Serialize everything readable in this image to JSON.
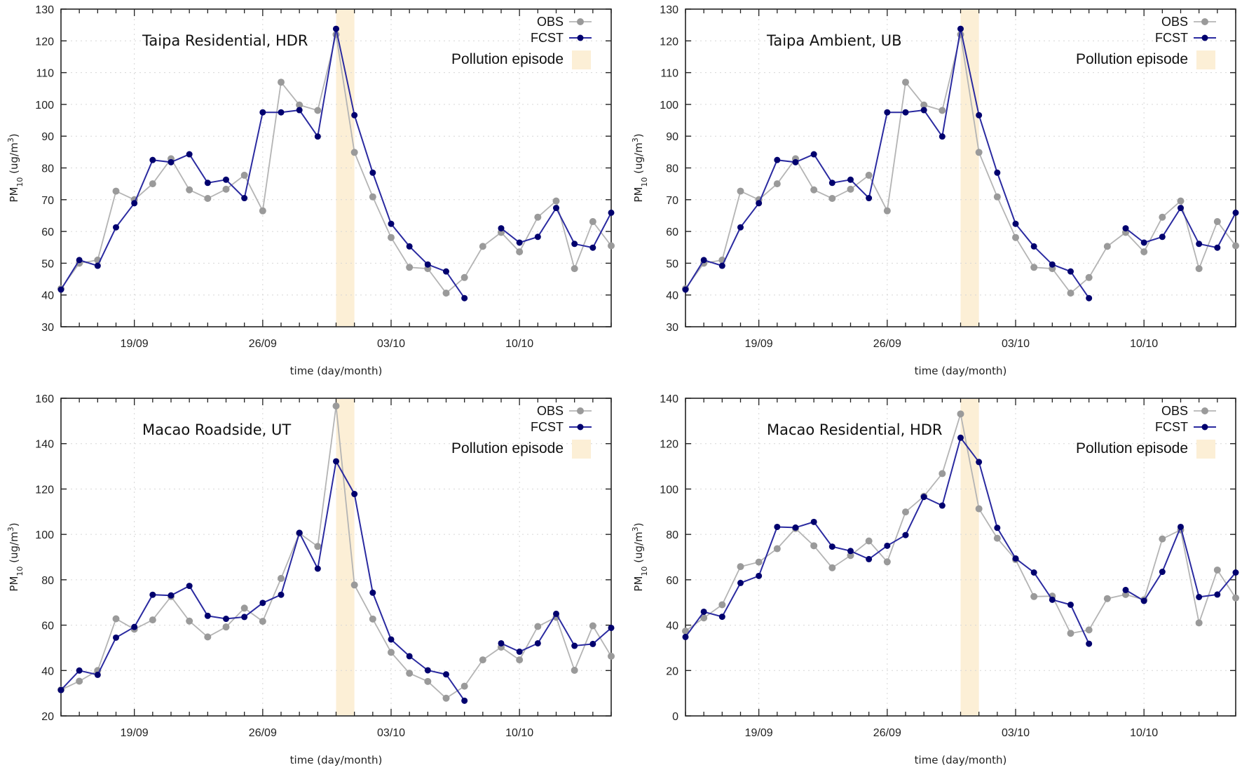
{
  "colors": {
    "obs_line": "#b4b4b4",
    "obs_marker": "#9a9a9a",
    "fcst_line": "#2a2aa0",
    "fcst_marker": "#00006e",
    "episode": "#fcefd6",
    "grid": "#d6d6d6",
    "axis": "#222222"
  },
  "legend": {
    "obs": "OBS",
    "fcst": "FCST",
    "episode": "Pollution episode"
  },
  "chart_data": [
    {
      "type": "line",
      "title": "Taipa Residential, HDR",
      "xlabel": "time (day/month)",
      "ylabel_parts": [
        "PM",
        "10",
        " (ug/m",
        "3",
        ")"
      ],
      "ylim": [
        30,
        130
      ],
      "ystep": 10,
      "x": [
        "15/09",
        "16/09",
        "17/09",
        "18/09",
        "19/09",
        "20/09",
        "21/09",
        "22/09",
        "23/09",
        "24/09",
        "25/09",
        "26/09",
        "27/09",
        "28/09",
        "29/09",
        "30/09",
        "01/10",
        "02/10",
        "03/10",
        "04/10",
        "05/10",
        "06/10",
        "07/10",
        "08/10",
        "09/10",
        "10/10",
        "11/10",
        "12/10",
        "13/10",
        "14/10",
        "15/10"
      ],
      "xticks": [
        "19/09",
        "26/09",
        "03/10",
        "10/10"
      ],
      "episode": [
        "30/09",
        "01/10"
      ],
      "grid": true,
      "legend_position": "top-right",
      "series": [
        {
          "name": "OBS",
          "values": [
            42,
            50,
            51,
            72.7,
            70,
            75,
            82.9,
            73.1,
            70.4,
            73.3,
            77.7,
            66.5,
            107,
            99.8,
            98.1,
            122,
            84.9,
            70.9,
            58.1,
            48.7,
            48.3,
            40.6,
            45.5,
            55.3,
            59.7,
            53.6,
            64.5,
            69.6,
            48.3,
            63.1,
            55.5
          ]
        },
        {
          "name": "FCST",
          "values": [
            41.7,
            51,
            49.2,
            61.3,
            68.9,
            82.5,
            81.8,
            84.3,
            75.3,
            76.3,
            70.5,
            97.5,
            97.5,
            98.2,
            89.9,
            123.8,
            96.6,
            78.5,
            62.4,
            55.3,
            49.6,
            47.4,
            39,
            null,
            61,
            56.5,
            58.3,
            67.4,
            56.1,
            54.9,
            65.9
          ]
        }
      ]
    },
    {
      "type": "line",
      "title": "Taipa Ambient, UB",
      "xlabel": "time (day/month)",
      "ylabel_parts": [
        "PM",
        "10",
        " (ug/m",
        "3",
        ")"
      ],
      "ylim": [
        30,
        130
      ],
      "ystep": 10,
      "x": [
        "15/09",
        "16/09",
        "17/09",
        "18/09",
        "19/09",
        "20/09",
        "21/09",
        "22/09",
        "23/09",
        "24/09",
        "25/09",
        "26/09",
        "27/09",
        "28/09",
        "29/09",
        "30/09",
        "01/10",
        "02/10",
        "03/10",
        "04/10",
        "05/10",
        "06/10",
        "07/10",
        "08/10",
        "09/10",
        "10/10",
        "11/10",
        "12/10",
        "13/10",
        "14/10",
        "15/10"
      ],
      "xticks": [
        "19/09",
        "26/09",
        "03/10",
        "10/10"
      ],
      "episode": [
        "30/09",
        "01/10"
      ],
      "grid": true,
      "legend_position": "top-right",
      "series": [
        {
          "name": "OBS",
          "values": [
            42,
            50,
            51,
            72.7,
            70,
            75,
            82.9,
            73.1,
            70.4,
            73.3,
            77.7,
            66.5,
            107,
            99.8,
            98.1,
            122,
            84.9,
            70.9,
            58.1,
            48.7,
            48.3,
            40.6,
            45.5,
            55.3,
            59.7,
            53.6,
            64.5,
            69.6,
            48.3,
            63.1,
            55.5
          ]
        },
        {
          "name": "FCST",
          "values": [
            41.7,
            51,
            49.2,
            61.3,
            68.9,
            82.5,
            81.8,
            84.3,
            75.3,
            76.3,
            70.5,
            97.5,
            97.5,
            98.2,
            89.9,
            123.8,
            96.6,
            78.5,
            62.4,
            55.3,
            49.6,
            47.4,
            39,
            null,
            61,
            56.5,
            58.3,
            67.4,
            56.1,
            54.9,
            65.9
          ]
        }
      ]
    },
    {
      "type": "line",
      "title": "Macao Roadside, UT",
      "xlabel": "time (day/month)",
      "ylabel_parts": [
        "PM",
        "10",
        " (ug/m",
        "3",
        ")"
      ],
      "ylim": [
        20,
        160
      ],
      "ystep": 20,
      "x": [
        "15/09",
        "16/09",
        "17/09",
        "18/09",
        "19/09",
        "20/09",
        "21/09",
        "22/09",
        "23/09",
        "24/09",
        "25/09",
        "26/09",
        "27/09",
        "28/09",
        "29/09",
        "30/09",
        "01/10",
        "02/10",
        "03/10",
        "04/10",
        "05/10",
        "06/10",
        "07/10",
        "08/10",
        "09/10",
        "10/10",
        "11/10",
        "12/10",
        "13/10",
        "14/10",
        "15/10"
      ],
      "xticks": [
        "19/09",
        "26/09",
        "03/10",
        "10/10"
      ],
      "episode": [
        "30/09",
        "01/10"
      ],
      "grid": true,
      "legend_position": "top-right",
      "series": [
        {
          "name": "OBS",
          "values": [
            31.5,
            35.3,
            40,
            62.8,
            58.2,
            62.3,
            72.6,
            61.8,
            54.8,
            59.2,
            67.5,
            61.7,
            80.6,
            100.5,
            94.7,
            156.6,
            77.7,
            62.7,
            48,
            38.8,
            35.2,
            27.8,
            33.1,
            44.7,
            50.3,
            44.7,
            59.4,
            63.5,
            40.1,
            59.7,
            46.3
          ]
        },
        {
          "name": "FCST",
          "values": [
            31.4,
            40,
            38.1,
            54.5,
            59.2,
            73.4,
            73.1,
            77.3,
            64.1,
            62.8,
            63.6,
            69.8,
            73.4,
            100.7,
            84.9,
            132.2,
            117.8,
            74.3,
            53.7,
            46.3,
            40.1,
            38.3,
            26.7,
            null,
            52,
            48.3,
            52,
            65,
            50.9,
            51.7,
            58.8
          ]
        }
      ]
    },
    {
      "type": "line",
      "title": "Macao Residential, HDR",
      "xlabel": "time (day/month)",
      "ylabel_parts": [
        "PM",
        "10",
        " (ug/m",
        "3",
        ")"
      ],
      "ylim": [
        0,
        140
      ],
      "ystep": 20,
      "x": [
        "15/09",
        "16/09",
        "17/09",
        "18/09",
        "19/09",
        "20/09",
        "21/09",
        "22/09",
        "23/09",
        "24/09",
        "25/09",
        "26/09",
        "27/09",
        "28/09",
        "29/09",
        "30/09",
        "01/10",
        "02/10",
        "03/10",
        "04/10",
        "05/10",
        "06/10",
        "07/10",
        "08/10",
        "09/10",
        "10/10",
        "11/10",
        "12/10",
        "13/10",
        "14/10",
        "15/10"
      ],
      "xticks": [
        "19/09",
        "26/09",
        "03/10",
        "10/10"
      ],
      "episode": [
        "30/09",
        "01/10"
      ],
      "grid": true,
      "legend_position": "top-right",
      "series": [
        {
          "name": "OBS",
          "values": [
            37.4,
            43.2,
            49,
            65.8,
            67.8,
            73.7,
            82.6,
            75,
            65.3,
            70.7,
            77.1,
            67.9,
            89.9,
            96.8,
            106.8,
            133.1,
            91.3,
            78.3,
            68.9,
            52.6,
            52.8,
            36.4,
            37.9,
            51.7,
            53.5,
            51.2,
            78,
            82,
            41,
            64.3,
            52
          ]
        },
        {
          "name": "FCST",
          "values": [
            34.8,
            45.9,
            43.7,
            58.6,
            61.7,
            83.3,
            83,
            85.5,
            74.6,
            72.7,
            69.1,
            75,
            79.7,
            96.5,
            92.7,
            122.6,
            111.9,
            82.9,
            69.4,
            63.2,
            51.2,
            49,
            31.8,
            null,
            55.5,
            50.7,
            63.5,
            83.3,
            52.4,
            53.5,
            63.2
          ]
        }
      ]
    }
  ]
}
